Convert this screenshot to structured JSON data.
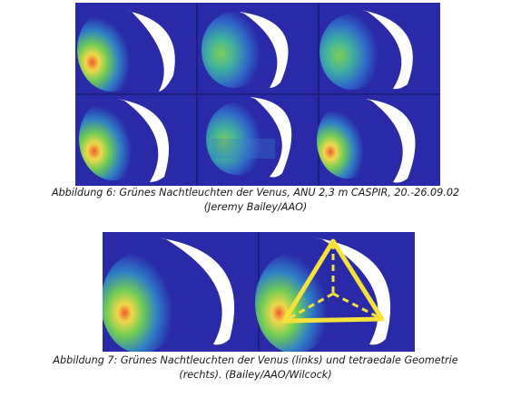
{
  "figure6": {
    "caption_line1": "Abbildung 6: Grünes Nachtleuchten der Venus, ANU 2,3 m CASPIR, 20.-26.09.02",
    "caption_line2": "(Jeremy Bailey/AAO)"
  },
  "figure7": {
    "caption_line1": "Abbildung 7: Grünes Nachtleuchten der Venus (links) und tetraedale Geometrie",
    "caption_line2": "(rechts). (Bailey/AAO/Wilcock)"
  },
  "colors": {
    "background_blue": "#2a2aa8",
    "crescent_white": "#ffffff",
    "glow_green": "#5ec85a",
    "glow_yellow": "#f0d84a",
    "glow_red": "#e05030",
    "overlay_yellow": "#f5e23a"
  }
}
